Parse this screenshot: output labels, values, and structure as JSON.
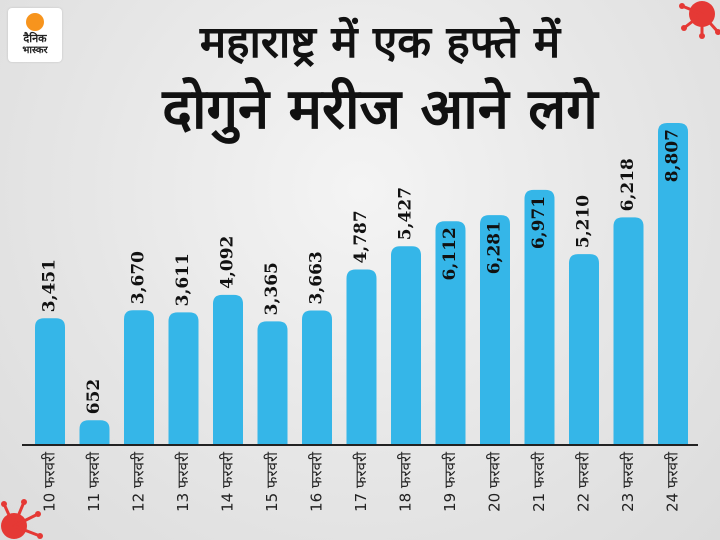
{
  "logo": {
    "line1": "दैनिक",
    "line2": "भास्कर"
  },
  "title": {
    "line1": "महाराष्ट्र में एक हफ्ते में",
    "line2": "दोगुने मरीज आने लगे"
  },
  "colors": {
    "bar": "#35b6e8",
    "bar_top": "#6fd0f3",
    "label": "#111111",
    "axis": "#222222",
    "virus": "#e53935"
  },
  "chart_data": {
    "type": "bar",
    "categories": [
      "10 फरवरी",
      "11 फरवरी",
      "12 फरवरी",
      "13 फरवरी",
      "14 फरवरी",
      "15 फरवरी",
      "16 फरवरी",
      "17 फरवरी",
      "18 फरवरी",
      "19 फरवरी",
      "20 फरवरी",
      "21 फरवरी",
      "22 फरवरी",
      "23 फरवरी",
      "24 फरवरी"
    ],
    "values": [
      3451,
      652,
      3670,
      3611,
      4092,
      3365,
      3663,
      4787,
      5427,
      6112,
      6281,
      6971,
      5210,
      6218,
      8807
    ],
    "data_labels": [
      "3,451",
      "652",
      "3,670",
      "3,611",
      "4,092",
      "3,365",
      "3,663",
      "4,787",
      "5,427",
      "6,112",
      "6,281",
      "6,971",
      "5,210",
      "6,218",
      "8,807"
    ],
    "label_inside": [
      false,
      false,
      false,
      false,
      false,
      false,
      false,
      false,
      false,
      true,
      true,
      true,
      false,
      false,
      true
    ],
    "ylim": [
      0,
      8807
    ],
    "xlabel": "",
    "ylabel": "",
    "title": ""
  }
}
